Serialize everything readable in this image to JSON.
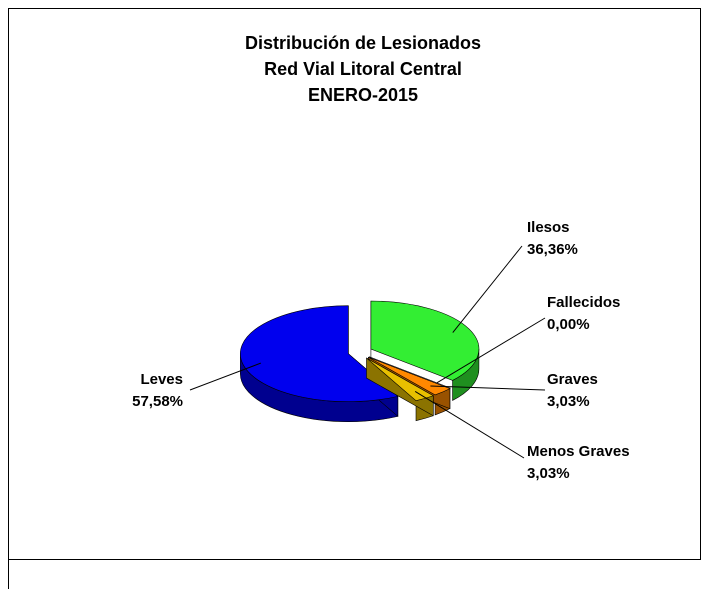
{
  "chart_data": {
    "type": "pie",
    "title": [
      "Distribución de Lesionados",
      "Red Vial Litoral Central",
      "ENERO-2015"
    ],
    "categories": [
      "Ilesos",
      "Fallecidos",
      "Graves",
      "Menos Graves",
      "Leves"
    ],
    "values": [
      36.36,
      0.0,
      3.03,
      3.03,
      57.58
    ],
    "value_labels": [
      "36,36%",
      "0,00%",
      "3,03%",
      "3,03%",
      "57,58%"
    ],
    "colors": [
      "#33ee33",
      "#cc3300",
      "#ff8800",
      "#e8c000",
      "#0000ee"
    ]
  }
}
